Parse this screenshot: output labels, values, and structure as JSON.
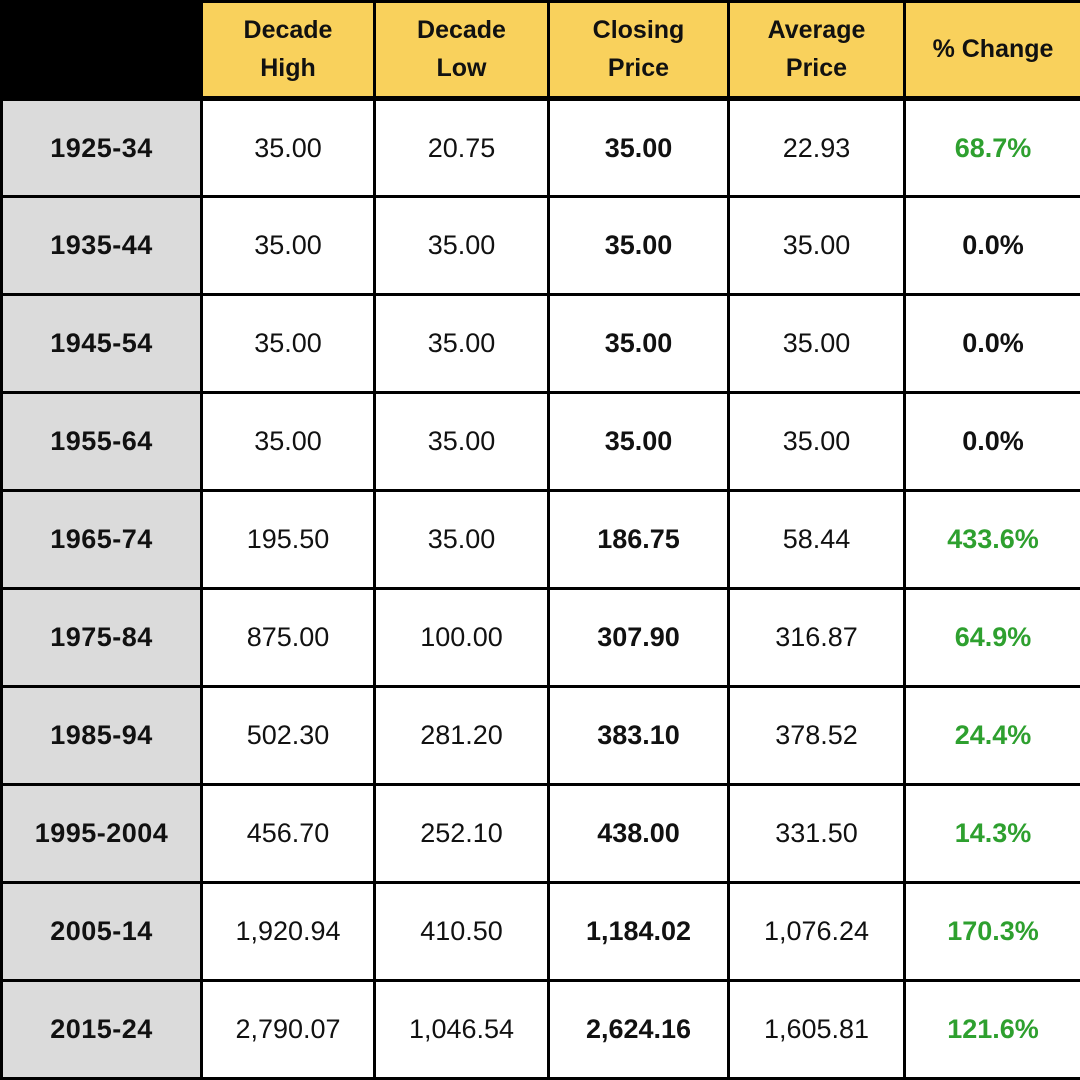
{
  "colors": {
    "header_bg": "#f9d15c",
    "row_label_bg": "#dbdbdb",
    "positive_green": "#2ea02f",
    "corner_bg": "#000000",
    "border": "#000000",
    "text": "#111111"
  },
  "chart_data": {
    "type": "table",
    "title": "",
    "columns": [
      {
        "key": "period",
        "label": ""
      },
      {
        "key": "decade_high",
        "label": "Decade\nHigh"
      },
      {
        "key": "decade_low",
        "label": "Decade\nLow"
      },
      {
        "key": "closing_price",
        "label": "Closing\nPrice"
      },
      {
        "key": "average_price",
        "label": "Average\nPrice"
      },
      {
        "key": "pct_change",
        "label": "% Change"
      }
    ],
    "rows": [
      {
        "period": "1925-34",
        "decade_high": "35.00",
        "decade_low": "20.75",
        "closing_price": "35.00",
        "average_price": "22.93",
        "pct_change": "68.7%",
        "pct_change_color": "green"
      },
      {
        "period": "1935-44",
        "decade_high": "35.00",
        "decade_low": "35.00",
        "closing_price": "35.00",
        "average_price": "35.00",
        "pct_change": "0.0%",
        "pct_change_color": "black"
      },
      {
        "period": "1945-54",
        "decade_high": "35.00",
        "decade_low": "35.00",
        "closing_price": "35.00",
        "average_price": "35.00",
        "pct_change": "0.0%",
        "pct_change_color": "black"
      },
      {
        "period": "1955-64",
        "decade_high": "35.00",
        "decade_low": "35.00",
        "closing_price": "35.00",
        "average_price": "35.00",
        "pct_change": "0.0%",
        "pct_change_color": "black"
      },
      {
        "period": "1965-74",
        "decade_high": "195.50",
        "decade_low": "35.00",
        "closing_price": "186.75",
        "average_price": "58.44",
        "pct_change": "433.6%",
        "pct_change_color": "green"
      },
      {
        "period": "1975-84",
        "decade_high": "875.00",
        "decade_low": "100.00",
        "closing_price": "307.90",
        "average_price": "316.87",
        "pct_change": "64.9%",
        "pct_change_color": "green"
      },
      {
        "period": "1985-94",
        "decade_high": "502.30",
        "decade_low": "281.20",
        "closing_price": "383.10",
        "average_price": "378.52",
        "pct_change": "24.4%",
        "pct_change_color": "green"
      },
      {
        "period": "1995-2004",
        "decade_high": "456.70",
        "decade_low": "252.10",
        "closing_price": "438.00",
        "average_price": "331.50",
        "pct_change": "14.3%",
        "pct_change_color": "green"
      },
      {
        "period": "2005-14",
        "decade_high": "1,920.94",
        "decade_low": "410.50",
        "closing_price": "1,184.02",
        "average_price": "1,076.24",
        "pct_change": "170.3%",
        "pct_change_color": "green"
      },
      {
        "period": "2015-24",
        "decade_high": "2,790.07",
        "decade_low": "1,046.54",
        "closing_price": "2,624.16",
        "average_price": "1,605.81",
        "pct_change": "121.6%",
        "pct_change_color": "green"
      }
    ]
  }
}
